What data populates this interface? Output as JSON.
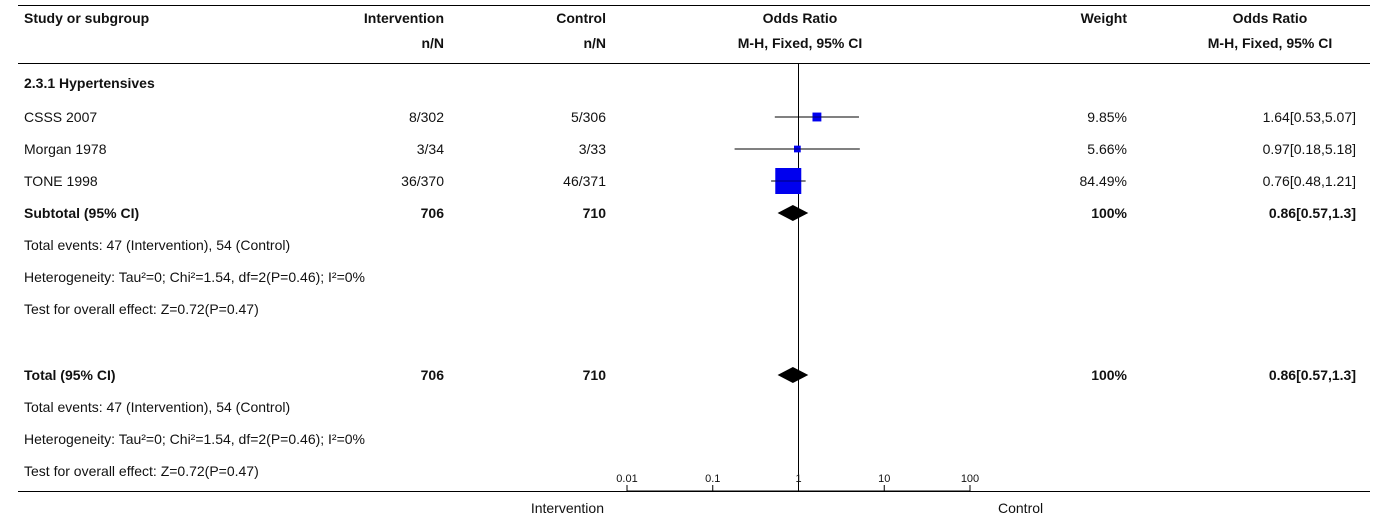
{
  "headers": {
    "study": "Study or subgroup",
    "intervention": "Intervention",
    "intervention_sub": "n/N",
    "control": "Control",
    "control_sub": "n/N",
    "or_plot": "Odds Ratio",
    "or_plot_sub": "M-H, Fixed, 95% CI",
    "weight": "Weight",
    "or_text": "Odds Ratio",
    "or_text_sub": "M-H, Fixed, 95% CI"
  },
  "subgroup": {
    "title": "2.3.1 Hypertensives",
    "subtotal": {
      "label": "Subtotal (95% CI)",
      "intervention": "706",
      "control": "710",
      "weight": "100%",
      "ci": "0.86[0.57,1.3]"
    },
    "notes": [
      "Total events: 47 (Intervention), 54 (Control)",
      "Heterogeneity: Tau²=0; Chi²=1.54, df=2(P=0.46); I²=0%",
      "Test for overall effect: Z=0.72(P=0.47)"
    ]
  },
  "total": {
    "label": "Total (95% CI)",
    "intervention": "706",
    "control": "710",
    "weight": "100%",
    "ci": "0.86[0.57,1.3]",
    "notes": [
      "Total events: 47 (Intervention), 54 (Control)",
      "Heterogeneity: Tau²=0; Chi²=1.54, df=2(P=0.46); I²=0%",
      "Test for overall effect: Z=0.72(P=0.47)"
    ]
  },
  "footer": {
    "left_label": "Intervention",
    "right_label": "Control"
  },
  "colors": {
    "study_box": "#0000ee",
    "summary": "#000000",
    "axis": "#000000",
    "ci_line": "#000000"
  },
  "chart_data": {
    "type": "forest",
    "x_scale": "log",
    "xlim": [
      0.01,
      100
    ],
    "x_ticks": [
      "0.01",
      "0.1",
      "1",
      "10",
      "100"
    ],
    "reference_line": 1,
    "studies": [
      {
        "name": "CSSS 2007",
        "intervention": "8/302",
        "control": "5/306",
        "weight": "9.85%",
        "weight_value": 9.85,
        "ci": "1.64[0.53,5.07]",
        "or": 1.64,
        "lower": 0.53,
        "upper": 5.07
      },
      {
        "name": "Morgan 1978",
        "intervention": "3/34",
        "control": "3/33",
        "weight": "5.66%",
        "weight_value": 5.66,
        "ci": "0.97[0.18,5.18]",
        "or": 0.97,
        "lower": 0.18,
        "upper": 5.18
      },
      {
        "name": "TONE 1998",
        "intervention": "36/370",
        "control": "46/371",
        "weight": "84.49%",
        "weight_value": 84.49,
        "ci": "0.76[0.48,1.21]",
        "or": 0.76,
        "lower": 0.48,
        "upper": 1.21
      }
    ],
    "summaries": [
      {
        "name": "Subtotal (95% CI)",
        "or": 0.86,
        "lower": 0.57,
        "upper": 1.3
      },
      {
        "name": "Total (95% CI)",
        "or": 0.86,
        "lower": 0.57,
        "upper": 1.3
      }
    ]
  }
}
